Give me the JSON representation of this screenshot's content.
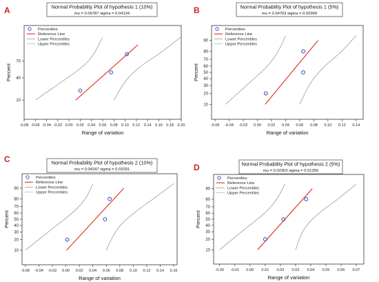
{
  "chart_data": [
    {
      "letter": "A",
      "type": "scatter",
      "title": "Normal Probability Plot of hypothesis 1 (10%)",
      "subtitle": "mu = 0.06787  sigma = 0.04134",
      "xlabel": "Range of variation",
      "ylabel": "Percent",
      "xticks": [
        -0.08,
        -0.06,
        -0.04,
        -0.02,
        0.0,
        0.02,
        0.04,
        0.06,
        0.08,
        0.1,
        0.12,
        0.14,
        0.16,
        0.18,
        0.2
      ],
      "xtick_labels": [
        "-0.08",
        "-0.06",
        "-0.04",
        "-0.02",
        "0.00",
        "0.02",
        "0.04",
        "0.06",
        "0.08",
        "0.10",
        "0.12",
        "0.14",
        "0.16",
        "0.18",
        "0.20"
      ],
      "xlim": [
        -0.08,
        0.2
      ],
      "yticks": [
        10,
        40,
        70
      ],
      "ylim": [
        1.5,
        98.5
      ],
      "points": [
        {
          "x": 0.02,
          "y": 20
        },
        {
          "x": 0.075,
          "y": 50
        },
        {
          "x": 0.103,
          "y": 80
        }
      ],
      "reference_line": [
        {
          "x": 0.012,
          "y": 10
        },
        {
          "x": 0.123,
          "y": 90
        }
      ],
      "lower_band": [
        {
          "x": -0.06,
          "y": 10
        },
        {
          "x": -0.01,
          "y": 35
        },
        {
          "x": 0.025,
          "y": 60
        },
        {
          "x": 0.045,
          "y": 80
        },
        {
          "x": 0.06,
          "y": 95
        }
      ],
      "upper_band": [
        {
          "x": 0.08,
          "y": 10
        },
        {
          "x": 0.1,
          "y": 35
        },
        {
          "x": 0.125,
          "y": 60
        },
        {
          "x": 0.16,
          "y": 80
        },
        {
          "x": 0.2,
          "y": 95
        }
      ],
      "legend": [
        "Percentiles",
        "Reference Line",
        "Lower Percentiles",
        "Upper Percentiles"
      ],
      "legend_position": "top-left"
    },
    {
      "letter": "B",
      "type": "scatter",
      "title": "Normal Probability Plot of hypothesis 1 (5%)",
      "subtitle": "mu = 0.04763  sigma = 0.02999",
      "xlabel": "Range of variation",
      "ylabel": "Percent",
      "xticks": [
        -0.06,
        -0.04,
        -0.02,
        0.0,
        0.02,
        0.04,
        0.06,
        0.08,
        0.1,
        0.12,
        0.14
      ],
      "xtick_labels": [
        "-0.06",
        "-0.04",
        "-0.02",
        "0.00",
        "0.02",
        "0.04",
        "0.06",
        "0.08",
        "0.10",
        "0.12",
        "0.14"
      ],
      "xlim": [
        -0.065,
        0.15
      ],
      "yticks": [
        10,
        20,
        30,
        40,
        50,
        60,
        70,
        80,
        90
      ],
      "ylim": [
        3,
        97
      ],
      "points": [
        {
          "x": 0.012,
          "y": 20
        },
        {
          "x": 0.065,
          "y": 50
        },
        {
          "x": 0.065,
          "y": 80
        }
      ],
      "reference_line": [
        {
          "x": 0.011,
          "y": 10
        },
        {
          "x": 0.086,
          "y": 90
        }
      ],
      "lower_band": [
        {
          "x": -0.045,
          "y": 10
        },
        {
          "x": -0.01,
          "y": 35
        },
        {
          "x": 0.015,
          "y": 60
        },
        {
          "x": 0.03,
          "y": 80
        },
        {
          "x": 0.04,
          "y": 93
        }
      ],
      "upper_band": [
        {
          "x": 0.06,
          "y": 10
        },
        {
          "x": 0.075,
          "y": 35
        },
        {
          "x": 0.095,
          "y": 60
        },
        {
          "x": 0.12,
          "y": 80
        },
        {
          "x": 0.14,
          "y": 93
        }
      ],
      "legend": [
        "Percentiles",
        "Reference Line",
        "Lower Percentiles",
        "Upper Percentiles"
      ],
      "legend_position": "top-left"
    },
    {
      "letter": "C",
      "type": "scatter",
      "title": "Normal Probability Plot of hypothesis 2 (10%)",
      "subtitle": "mu = 0.04247  sigma = 0.03291",
      "xlabel": "Range of variation",
      "ylabel": "Percent",
      "xticks": [
        -0.06,
        -0.04,
        -0.02,
        0.0,
        0.02,
        0.04,
        0.06,
        0.08,
        0.1,
        0.12,
        0.14,
        0.16
      ],
      "xtick_labels": [
        "-0.06",
        "-0.04",
        "-0.02",
        "0.00",
        "0.02",
        "0.04",
        "0.06",
        "0.08",
        "0.10",
        "0.12",
        "0.14",
        "0.16"
      ],
      "xlim": [
        -0.065,
        0.165
      ],
      "yticks": [
        10,
        20,
        30,
        40,
        50,
        60,
        70,
        80,
        90
      ],
      "ylim": [
        3,
        97
      ],
      "points": [
        {
          "x": 0.002,
          "y": 20
        },
        {
          "x": 0.058,
          "y": 50
        },
        {
          "x": 0.065,
          "y": 80
        }
      ],
      "reference_line": [
        {
          "x": 0.001,
          "y": 10
        },
        {
          "x": 0.086,
          "y": 90
        }
      ],
      "lower_band": [
        {
          "x": -0.06,
          "y": 10
        },
        {
          "x": -0.02,
          "y": 35
        },
        {
          "x": 0.01,
          "y": 60
        },
        {
          "x": 0.03,
          "y": 80
        },
        {
          "x": 0.04,
          "y": 93
        }
      ],
      "upper_band": [
        {
          "x": 0.06,
          "y": 10
        },
        {
          "x": 0.075,
          "y": 35
        },
        {
          "x": 0.1,
          "y": 60
        },
        {
          "x": 0.13,
          "y": 80
        },
        {
          "x": 0.16,
          "y": 93
        }
      ],
      "legend": [
        "Percentiles",
        "Reference Line",
        "Lower Percentiles",
        "Upper Percentiles"
      ],
      "legend_position": "top-left"
    },
    {
      "letter": "D",
      "type": "scatter",
      "title": "Normal Probability Plot of hypothesis 2 (5%)",
      "subtitle": "mu = 0.02303  sigma = 0.01356",
      "xlabel": "Range of variation",
      "ylabel": "Percent",
      "xticks": [
        -0.02,
        -0.01,
        0.0,
        0.01,
        0.02,
        0.03,
        0.04,
        0.05,
        0.06,
        0.07
      ],
      "xtick_labels": [
        "-0.02",
        "-0.01",
        "0.00",
        "0.01",
        "0.02",
        "0.03",
        "0.04",
        "0.05",
        "0.06",
        "0.07"
      ],
      "xlim": [
        -0.024,
        0.075
      ],
      "yticks": [
        10,
        20,
        30,
        40,
        50,
        60,
        70,
        80,
        90
      ],
      "ylim": [
        3,
        97
      ],
      "points": [
        {
          "x": 0.01,
          "y": 20
        },
        {
          "x": 0.022,
          "y": 50
        },
        {
          "x": 0.037,
          "y": 80
        }
      ],
      "reference_line": [
        {
          "x": 0.005,
          "y": 10
        },
        {
          "x": 0.041,
          "y": 90
        }
      ],
      "lower_band": [
        {
          "x": -0.02,
          "y": 10
        },
        {
          "x": -0.003,
          "y": 35
        },
        {
          "x": 0.01,
          "y": 60
        },
        {
          "x": 0.018,
          "y": 80
        },
        {
          "x": 0.023,
          "y": 93
        }
      ],
      "upper_band": [
        {
          "x": 0.03,
          "y": 10
        },
        {
          "x": 0.035,
          "y": 35
        },
        {
          "x": 0.045,
          "y": 60
        },
        {
          "x": 0.058,
          "y": 80
        },
        {
          "x": 0.07,
          "y": 93
        }
      ],
      "legend": [
        "Percentiles",
        "Reference Line",
        "Lower Percentiles",
        "Upper Percentiles"
      ],
      "legend_position": "top-left"
    }
  ],
  "colors": {
    "letter": "#d02020",
    "reference_line": "#e03a2a",
    "points": "#2b46c8",
    "band": "#9a9a9a",
    "axis": "#333333"
  }
}
